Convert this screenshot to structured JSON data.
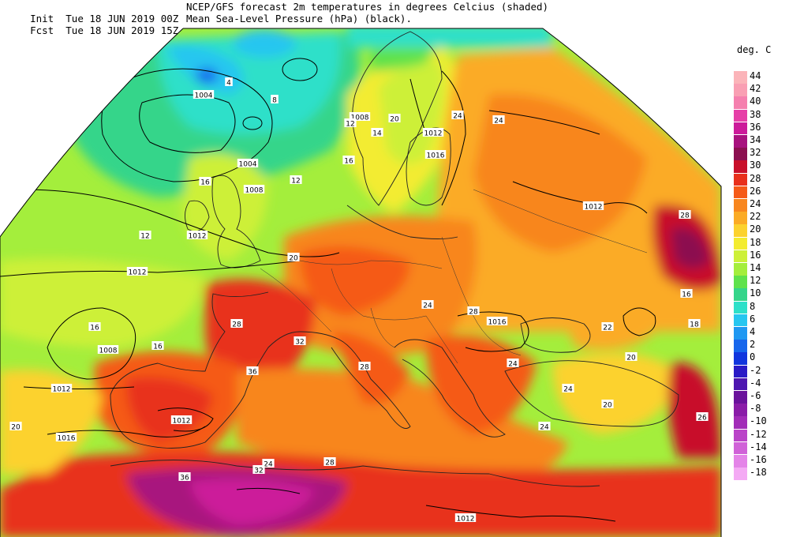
{
  "header": {
    "init_label": "Init",
    "init_time": "Tue 18 JUN 2019 00Z",
    "fcst_label": "Fcst",
    "fcst_time": "Tue 18 JUN 2019 15Z",
    "line1": "NCEP/GFS forecast 2m temperatures in degrees Celcius (shaded)",
    "line2": "Mean Sea-Level Pressure (hPa) (black)."
  },
  "legend": {
    "unit": "deg. C",
    "stops": [
      {
        "label": "44",
        "color": "#fbb4b9"
      },
      {
        "label": "42",
        "color": "#f99fb3"
      },
      {
        "label": "40",
        "color": "#f57fae"
      },
      {
        "label": "38",
        "color": "#e63fa7"
      },
      {
        "label": "36",
        "color": "#cc1a9a"
      },
      {
        "label": "34",
        "color": "#a8127e"
      },
      {
        "label": "32",
        "color": "#8c1050"
      },
      {
        "label": "30",
        "color": "#c8102a"
      },
      {
        "label": "28",
        "color": "#e8301c"
      },
      {
        "label": "26",
        "color": "#f55a18"
      },
      {
        "label": "24",
        "color": "#f8861e"
      },
      {
        "label": "22",
        "color": "#fbab25"
      },
      {
        "label": "20",
        "color": "#fcd22e"
      },
      {
        "label": "18",
        "color": "#f3ec30"
      },
      {
        "label": "16",
        "color": "#cdf038"
      },
      {
        "label": "14",
        "color": "#a4ee3c"
      },
      {
        "label": "12",
        "color": "#5fe24c"
      },
      {
        "label": "10",
        "color": "#35d58a"
      },
      {
        "label": "8",
        "color": "#2de0c9"
      },
      {
        "label": "6",
        "color": "#26c6f0"
      },
      {
        "label": "4",
        "color": "#1f98f2"
      },
      {
        "label": "2",
        "color": "#1766ec"
      },
      {
        "label": "0",
        "color": "#1135de"
      },
      {
        "label": "-2",
        "color": "#2a1ac6"
      },
      {
        "label": "-4",
        "color": "#4d16b0"
      },
      {
        "label": "-6",
        "color": "#6a129c"
      },
      {
        "label": "-8",
        "color": "#8a1ca8"
      },
      {
        "label": "-10",
        "color": "#a22cb8"
      },
      {
        "label": "-12",
        "color": "#ba44c8"
      },
      {
        "label": "-14",
        "color": "#d062d8"
      },
      {
        "label": "-16",
        "color": "#e484e8"
      },
      {
        "label": "-18",
        "color": "#f4aaf4"
      }
    ]
  },
  "isobar_labels": [
    "1004",
    "1004",
    "1008",
    "1008",
    "1012",
    "1012",
    "1016",
    "1012",
    "1012",
    "1012",
    "1008",
    "1012",
    "1016",
    "1016",
    "1012"
  ],
  "temp_labels": [
    "4",
    "8",
    "12",
    "16",
    "20",
    "24",
    "28",
    "32",
    "36",
    "16",
    "20",
    "24",
    "28",
    "12",
    "16",
    "20",
    "24",
    "28",
    "32",
    "36",
    "16",
    "24",
    "28",
    "20",
    "24",
    "16",
    "18",
    "22",
    "26",
    "12",
    "14",
    "24",
    "20",
    "24",
    "28"
  ]
}
